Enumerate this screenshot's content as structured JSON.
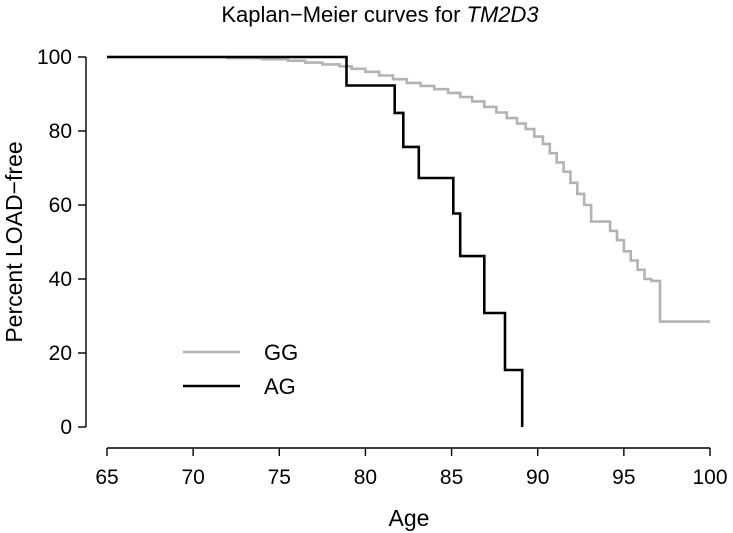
{
  "chart_data": {
    "type": "line",
    "title": "Kaplan−Meier curves for ",
    "title_gene": "TM2D3",
    "xlabel": "Age",
    "ylabel": "Percent LOAD−free",
    "xlim": [
      65,
      100
    ],
    "ylim": [
      0,
      100
    ],
    "x_ticks": [
      65,
      70,
      75,
      80,
      85,
      90,
      95,
      100
    ],
    "y_ticks": [
      0,
      20,
      40,
      60,
      80,
      100
    ],
    "grid": false,
    "legend_position": "bottom-left",
    "series": [
      {
        "name": "GG",
        "color": "#b3b3b3",
        "step": true,
        "x": [
          65,
          72,
          74,
          75.5,
          76.5,
          77.5,
          78.5,
          79.2,
          80,
          80.8,
          81.6,
          82.4,
          83.2,
          84,
          84.8,
          85.5,
          86.2,
          86.9,
          87.6,
          88.2,
          88.8,
          89.3,
          89.8,
          90.3,
          90.7,
          91.1,
          91.5,
          91.9,
          92.3,
          92.7,
          93.1,
          94.2,
          94.6,
          95,
          95.4,
          95.8,
          96.2,
          96.6,
          97.1,
          100
        ],
        "y": [
          100,
          99.7,
          99.4,
          99,
          98.5,
          98,
          97.5,
          96.8,
          96,
          95,
          94,
          93,
          92.2,
          91.3,
          90.3,
          89.2,
          88,
          86.5,
          85,
          83.5,
          82,
          80.5,
          78.5,
          76.5,
          74,
          71.5,
          69,
          66,
          63,
          60,
          55.5,
          53,
          50.5,
          47.5,
          45,
          42.5,
          40,
          39.5,
          28.5,
          28.5
        ]
      },
      {
        "name": "AG",
        "color": "#000000",
        "step": true,
        "x": [
          65,
          78.9,
          81.7,
          82.2,
          83.1,
          85.1,
          85.5,
          86.9,
          88.1,
          89.1
        ],
        "y": [
          100,
          92.3,
          84.9,
          75.7,
          67.3,
          57.7,
          46.2,
          30.8,
          15.4,
          0
        ]
      }
    ]
  }
}
